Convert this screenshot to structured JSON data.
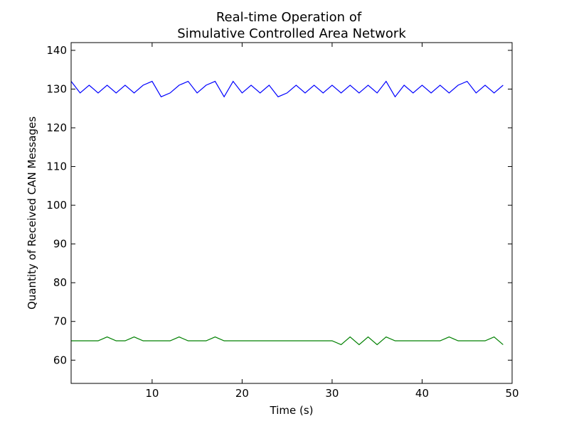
{
  "chart_data": {
    "type": "line",
    "title": [
      "Real-time Operation of",
      "Simulative Controlled Area Network"
    ],
    "xlabel": "Time (s)",
    "ylabel": "Quantity of Received CAN Messages",
    "xlim": [
      1,
      50
    ],
    "ylim": [
      54,
      142
    ],
    "xticks": [
      10,
      20,
      30,
      40,
      50
    ],
    "yticks": [
      60,
      70,
      80,
      90,
      100,
      110,
      120,
      130,
      140
    ],
    "grid": false,
    "legend": "none",
    "x": [
      1,
      2,
      3,
      4,
      5,
      6,
      7,
      8,
      9,
      10,
      11,
      12,
      13,
      14,
      15,
      16,
      17,
      18,
      19,
      20,
      21,
      22,
      23,
      24,
      25,
      26,
      27,
      28,
      29,
      30,
      31,
      32,
      33,
      34,
      35,
      36,
      37,
      38,
      39,
      40,
      41,
      42,
      43,
      44,
      45,
      46,
      47,
      48,
      49
    ],
    "series": [
      {
        "color": "#0000ff",
        "values": [
          132,
          129,
          131,
          129,
          131,
          129,
          131,
          129,
          131,
          132,
          128,
          129,
          131,
          132,
          129,
          131,
          132,
          128,
          132,
          129,
          131,
          129,
          131,
          128,
          129,
          131,
          129,
          131,
          129,
          131,
          129,
          131,
          129,
          131,
          129,
          132,
          128,
          131,
          129,
          131,
          129,
          131,
          129,
          131,
          132,
          129,
          131,
          129,
          131
        ]
      },
      {
        "color": "#008000",
        "values": [
          65,
          65,
          65,
          65,
          66,
          65,
          65,
          66,
          65,
          65,
          65,
          65,
          66,
          65,
          65,
          65,
          66,
          65,
          65,
          65,
          65,
          65,
          65,
          65,
          65,
          65,
          65,
          65,
          65,
          65,
          64,
          66,
          64,
          66,
          64,
          66,
          65,
          65,
          65,
          65,
          65,
          65,
          66,
          65,
          65,
          65,
          65,
          66,
          64
        ]
      }
    ]
  }
}
